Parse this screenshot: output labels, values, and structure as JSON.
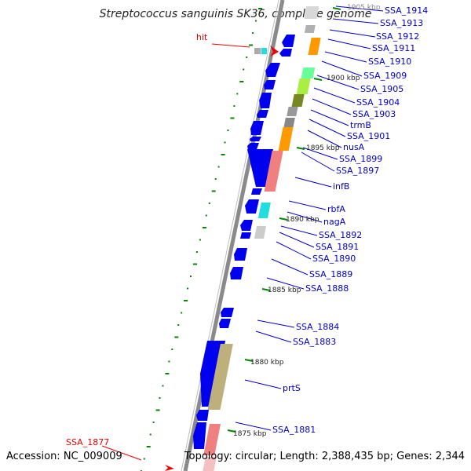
{
  "header": {
    "title": "Streptococcus sanguinis SK36, complete genome"
  },
  "footer": {
    "accession": "Accession: NC_009009",
    "summary": "Topology: circular; Length: 2,388,435 bp; Genes: 2,344"
  },
  "axis_ticks": [
    "1905 kbp",
    "1900 kbp",
    "1895 kbp",
    "1890 kbp",
    "1885 kbp",
    "1880 kbp",
    "1875 kbp"
  ],
  "gene_labels": [
    "SSA_1914",
    "SSA_1913",
    "SSA_1912",
    "SSA_1911",
    "SSA_1910",
    "SSA_1909",
    "SSA_1905",
    "SSA_1904",
    "SSA_1903",
    "trmB",
    "SSA_1901",
    "nusA",
    "SSA_1899",
    "SSA_1897",
    "infB",
    "rbfA",
    "nagA",
    "SSA_1892",
    "SSA_1891",
    "SSA_1890",
    "SSA_1889",
    "SSA_1888",
    "SSA_1884",
    "SSA_1883",
    "prtS",
    "SSA_1881"
  ],
  "hit_labels": [
    "hit",
    "SSA_1877"
  ],
  "colors": {
    "background": "#ffffff",
    "backbone": "#808080",
    "gene_forward": "#0000ee",
    "tick_dots": "#008800",
    "hit_label": "#ee0000",
    "gene_label": "#0000cc"
  }
}
